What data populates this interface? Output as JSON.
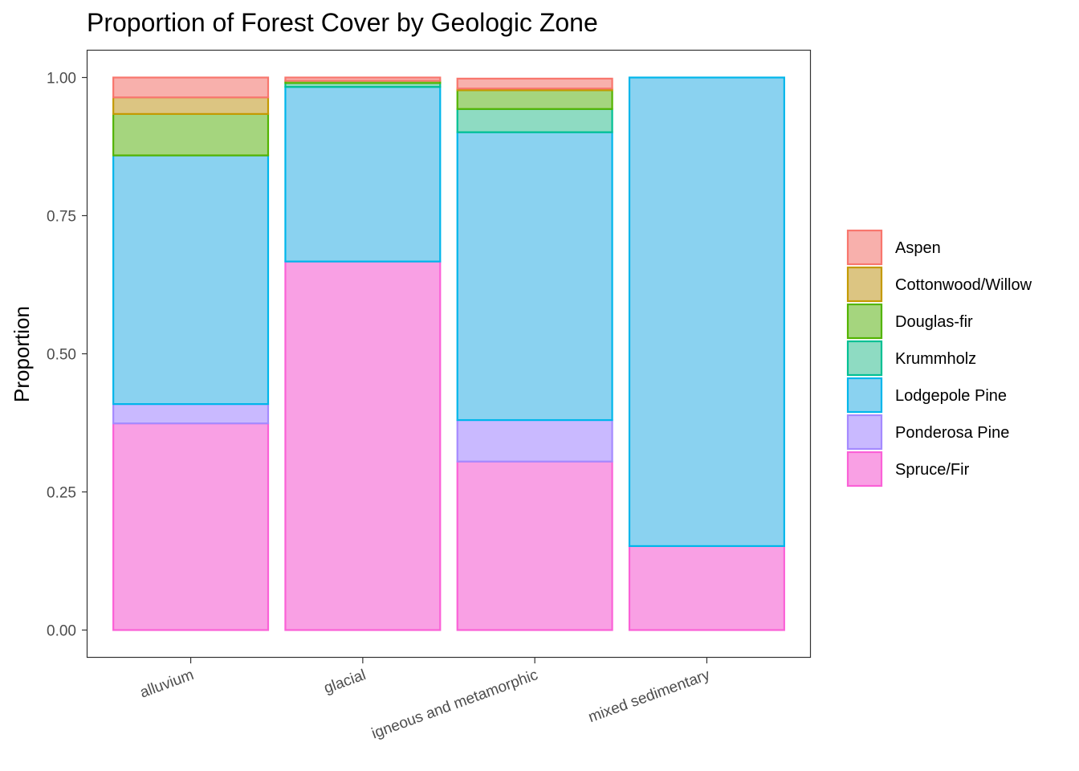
{
  "chart_data": {
    "type": "bar",
    "stacked": true,
    "title": "Proportion of Forest Cover by Geologic Zone",
    "xlabel": "",
    "ylabel": "Proportion",
    "ylim": [
      0,
      1
    ],
    "yticks": [
      "0.00",
      "0.25",
      "0.50",
      "0.75",
      "1.00"
    ],
    "ytick_values": [
      0,
      0.25,
      0.5,
      0.75,
      1.0
    ],
    "grid": false,
    "legend_position": "right",
    "categories": [
      "alluvium",
      "glacial",
      "igneous and metamorphic",
      "mixed sedimentary"
    ],
    "series": [
      {
        "name": "Aspen",
        "fill": "#F8B0AC",
        "stroke": "#F8766D",
        "values": [
          0.036,
          0.006,
          0.018,
          0.0
        ]
      },
      {
        "name": "Cottonwood/Willow",
        "fill": "#DCC582",
        "stroke": "#C49A00",
        "values": [
          0.03,
          0.0,
          0.003,
          0.0
        ]
      },
      {
        "name": "Douglas-fir",
        "fill": "#A5D57E",
        "stroke": "#53B400",
        "values": [
          0.075,
          0.004,
          0.034,
          0.0
        ]
      },
      {
        "name": "Krummholz",
        "fill": "#8EDBC2",
        "stroke": "#00C094",
        "values": [
          0.0,
          0.007,
          0.042,
          0.0
        ]
      },
      {
        "name": "Lodgepole Pine",
        "fill": "#8AD2F0",
        "stroke": "#00B6EB",
        "values": [
          0.45,
          0.316,
          0.521,
          0.848
        ]
      },
      {
        "name": "Ponderosa Pine",
        "fill": "#C9B9FF",
        "stroke": "#A58AFF",
        "values": [
          0.035,
          0.0,
          0.075,
          0.0
        ]
      },
      {
        "name": "Spruce/Fir",
        "fill": "#F9A0E4",
        "stroke": "#FB61D7",
        "values": [
          0.374,
          0.667,
          0.305,
          0.152
        ]
      }
    ]
  }
}
